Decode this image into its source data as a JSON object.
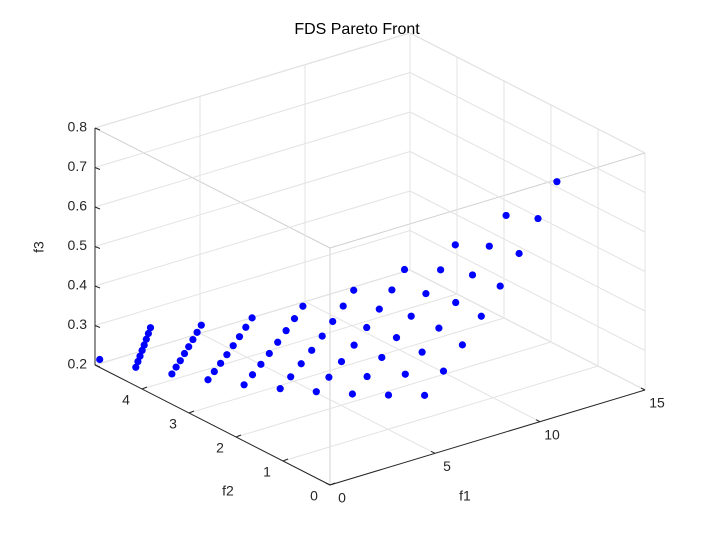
{
  "chart_data": {
    "type": "scatter3d",
    "title": "FDS Pareto Front",
    "xlabel": "f1",
    "ylabel": "f2",
    "zlabel": "f3",
    "xlim": [
      0,
      15
    ],
    "ylim": [
      0,
      5
    ],
    "zlim": [
      0.2,
      0.8
    ],
    "xticks": [
      0,
      5,
      10,
      15
    ],
    "yticks": [
      0,
      1,
      2,
      3,
      4
    ],
    "zticks": [
      0.2,
      0.3,
      0.4,
      0.5,
      0.6,
      0.7,
      0.8
    ],
    "grid": true,
    "color": "#0000ff",
    "x": [
      0,
      0.6,
      1.2,
      1.8,
      2.4,
      3.0,
      3.6,
      4.2,
      4.8,
      5.4,
      0.7,
      1.4,
      2.1,
      2.8,
      3.5,
      4.2,
      4.9,
      5.6,
      6.3,
      0.8,
      1.6,
      2.4,
      3.2,
      4.0,
      4.8,
      5.6,
      6.4,
      7.2,
      0.9,
      1.8,
      2.7,
      3.6,
      4.5,
      5.4,
      6.3,
      7.2,
      8.1,
      1.0,
      2.0,
      3.0,
      4.0,
      5.0,
      6.0,
      7.0,
      8.0,
      9.0,
      1.1,
      2.2,
      3.3,
      4.4,
      5.5,
      6.6,
      7.7,
      8.8,
      9.9,
      1.2,
      2.4,
      3.6,
      4.8,
      6.0,
      7.2,
      8.4,
      9.6,
      10.8,
      1.3,
      2.6,
      3.9,
      5.2,
      6.5,
      7.8,
      9.1,
      10.4,
      11.7
    ],
    "y": [
      4.9,
      4.4,
      3.9,
      3.4,
      2.9,
      2.4,
      1.9,
      1.4,
      0.9,
      0.4,
      4.4,
      3.9,
      3.4,
      2.9,
      2.4,
      1.9,
      1.4,
      0.9,
      0.4,
      4.4,
      3.9,
      3.4,
      2.9,
      2.4,
      1.9,
      1.4,
      0.9,
      0.4,
      4.4,
      3.9,
      3.4,
      2.9,
      2.4,
      1.9,
      1.4,
      0.9,
      0.4,
      4.4,
      3.9,
      3.4,
      2.9,
      2.4,
      1.9,
      1.4,
      0.9,
      0.4,
      4.4,
      3.9,
      3.4,
      2.9,
      2.4,
      1.9,
      1.4,
      0.9,
      0.4,
      4.4,
      3.9,
      3.4,
      2.9,
      2.4,
      1.9,
      1.4,
      0.9,
      0.4,
      4.4,
      3.9,
      3.4,
      2.9,
      2.4,
      1.9,
      1.4,
      0.9,
      0.4
    ],
    "z": [
      0.22,
      0.221,
      0.225,
      0.231,
      0.239,
      0.25,
      0.263,
      0.278,
      0.296,
      0.316,
      0.234,
      0.239,
      0.247,
      0.258,
      0.272,
      0.29,
      0.311,
      0.336,
      0.363,
      0.246,
      0.252,
      0.263,
      0.278,
      0.297,
      0.32,
      0.348,
      0.379,
      0.415,
      0.259,
      0.267,
      0.28,
      0.299,
      0.323,
      0.352,
      0.387,
      0.427,
      0.473,
      0.271,
      0.281,
      0.298,
      0.321,
      0.351,
      0.387,
      0.43,
      0.479,
      0.535,
      0.284,
      0.296,
      0.316,
      0.344,
      0.38,
      0.424,
      0.476,
      0.536,
      0.603,
      0.297,
      0.311,
      0.335,
      0.368,
      0.411,
      0.463,
      0.525,
      0.596,
      0.677,
      0.31,
      0.326,
      0.354,
      0.393,
      0.443,
      0.505,
      0.577,
      0.661,
      0.756
    ]
  }
}
